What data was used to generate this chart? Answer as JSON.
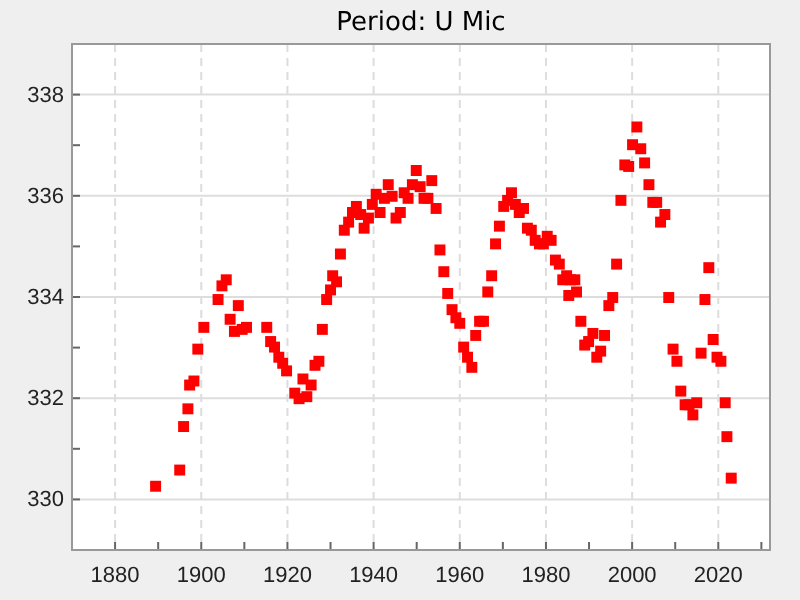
{
  "chart_data": {
    "type": "scatter",
    "title": "Period: U Mic",
    "x": [
      1889.4,
      1895.0,
      1895.9,
      1896.9,
      1897.3,
      1898.3,
      1899.2,
      1900.6,
      1903.9,
      1904.8,
      1905.8,
      1906.7,
      1907.7,
      1908.6,
      1909.5,
      1910.5,
      1915.2,
      1916.1,
      1917.0,
      1918.0,
      1918.9,
      1919.8,
      1921.7,
      1922.7,
      1923.6,
      1924.5,
      1925.5,
      1926.4,
      1927.3,
      1928.1,
      1929.1,
      1930.0,
      1930.5,
      1931.4,
      1932.3,
      1933.2,
      1934.2,
      1935.1,
      1936.0,
      1937.0,
      1937.8,
      1938.8,
      1939.7,
      1940.6,
      1941.5,
      1942.5,
      1943.4,
      1944.3,
      1945.2,
      1946.2,
      1947.1,
      1948.0,
      1949.0,
      1949.9,
      1950.8,
      1951.7,
      1952.6,
      1953.5,
      1954.5,
      1955.4,
      1956.3,
      1957.2,
      1958.2,
      1959.1,
      1960.0,
      1960.9,
      1961.8,
      1962.8,
      1963.7,
      1964.6,
      1965.5,
      1966.5,
      1967.4,
      1968.3,
      1969.2,
      1970.2,
      1971.1,
      1972.0,
      1972.9,
      1973.8,
      1974.8,
      1975.7,
      1976.6,
      1977.5,
      1978.5,
      1979.4,
      1980.3,
      1981.2,
      1982.2,
      1983.1,
      1983.9,
      1984.8,
      1985.3,
      1985.7,
      1986.7,
      1987.1,
      1988.1,
      1989.0,
      1989.9,
      1990.9,
      1991.8,
      1992.7,
      1993.6,
      1994.6,
      1995.5,
      1996.4,
      1997.4,
      1998.3,
      1999.2,
      2000.1,
      2001.1,
      2002.0,
      2002.9,
      2003.9,
      2004.8,
      2005.7,
      2006.6,
      2007.6,
      2008.5,
      2009.5,
      2010.4,
      2011.3,
      2012.3,
      2013.2,
      2014.1,
      2015.0,
      2016.0,
      2016.9,
      2017.8,
      2018.8,
      2019.7,
      2020.6,
      2021.6,
      2022.0,
      2023.0
    ],
    "series": [
      {
        "color": "#ff0000",
        "values": [
          330.26,
          330.58,
          331.44,
          331.79,
          332.26,
          332.34,
          332.97,
          333.4,
          333.95,
          334.22,
          334.34,
          333.56,
          333.32,
          333.83,
          333.36,
          333.4,
          333.4,
          333.12,
          333.01,
          332.81,
          332.69,
          332.54,
          332.1,
          331.99,
          332.38,
          332.03,
          332.26,
          332.65,
          332.73,
          333.36,
          333.95,
          334.14,
          334.42,
          334.3,
          334.85,
          335.32,
          335.48,
          335.67,
          335.79,
          335.63,
          335.36,
          335.56,
          335.83,
          336.03,
          335.67,
          335.95,
          336.22,
          335.99,
          335.56,
          335.67,
          336.06,
          335.95,
          336.22,
          336.5,
          336.18,
          335.95,
          335.95,
          336.3,
          335.75,
          334.93,
          334.5,
          334.07,
          333.75,
          333.59,
          333.48,
          333.01,
          332.81,
          332.61,
          333.24,
          333.52,
          333.52,
          334.1,
          334.42,
          335.05,
          335.4,
          335.79,
          335.91,
          336.06,
          335.83,
          335.67,
          335.75,
          335.36,
          335.32,
          335.12,
          335.05,
          335.05,
          335.2,
          335.12,
          334.73,
          334.65,
          334.34,
          334.42,
          334.03,
          334.34,
          334.34,
          334.1,
          333.52,
          333.05,
          333.12,
          333.28,
          332.81,
          332.93,
          333.24,
          333.83,
          333.99,
          334.65,
          335.91,
          336.61,
          336.58,
          337.01,
          337.36,
          336.93,
          336.65,
          336.22,
          335.87,
          335.87,
          335.48,
          335.63,
          333.99,
          332.97,
          332.73,
          332.14,
          331.87,
          331.87,
          331.67,
          331.91,
          332.89,
          333.95,
          334.58,
          333.16,
          332.81,
          332.73,
          331.91,
          331.24,
          330.42
        ]
      }
    ],
    "xlim": [
      1870,
      2032
    ],
    "xticks": [
      {
        "value": 1870,
        "label": null
      },
      1880,
      {
        "value": 1890,
        "label": null
      },
      1900,
      {
        "value": 1910,
        "label": null
      },
      1920,
      {
        "value": 1930,
        "label": null
      },
      1940,
      {
        "value": 1950,
        "label": null
      },
      1960,
      {
        "value": 1970,
        "label": null
      },
      1980,
      {
        "value": 1990,
        "label": null
      },
      2000,
      {
        "value": 2010,
        "label": null
      },
      2020,
      {
        "value": 2030,
        "label": null
      }
    ],
    "ylim": [
      329,
      339
    ],
    "yticks": [
      {
        "value": 329,
        "label": null
      },
      330,
      {
        "value": 331,
        "label": null
      },
      332,
      {
        "value": 333,
        "label": null
      },
      334,
      {
        "value": 335,
        "label": null
      },
      336,
      {
        "value": 337,
        "label": null
      },
      338,
      {
        "value": 339,
        "label": null
      }
    ],
    "grid": true,
    "marker": "square"
  }
}
